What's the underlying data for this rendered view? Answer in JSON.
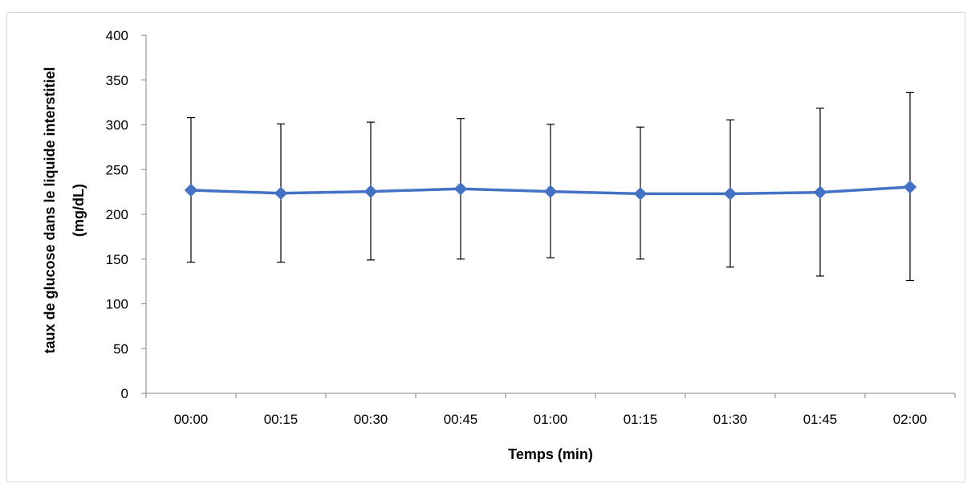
{
  "chart_data": {
    "type": "line",
    "title": "",
    "xlabel": "Temps (min)",
    "ylabel_lines": [
      "taux de glucose dans le liquide interstitiel",
      "(mg/dL)"
    ],
    "categories": [
      "00:00",
      "00:15",
      "00:30",
      "00:45",
      "01:00",
      "01:15",
      "01:30",
      "01:45",
      "02:00"
    ],
    "series": [
      {
        "values": [
          227,
          223.5,
          225.5,
          228.5,
          225.5,
          223,
          223,
          224.5,
          230.5
        ],
        "error_upper": [
          308,
          301,
          303,
          307,
          300.5,
          297.5,
          305.5,
          318.5,
          336
        ],
        "error_lower": [
          146.5,
          146.5,
          149,
          150,
          151.5,
          150,
          141,
          131,
          126
        ],
        "color": "#4472c4",
        "marker": "diamond"
      }
    ],
    "ylim": [
      0,
      400
    ],
    "yticks": [
      0,
      50,
      100,
      150,
      200,
      250,
      300,
      350,
      400
    ],
    "ytick_labels": [
      "0",
      "50",
      "100",
      "150",
      "200",
      "250",
      "300",
      "350",
      "400"
    ],
    "grid": false,
    "legend": "none"
  }
}
